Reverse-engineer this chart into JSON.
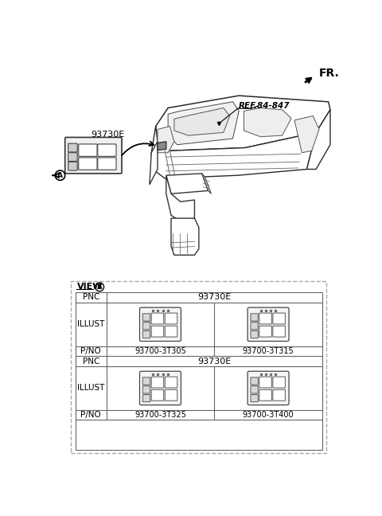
{
  "bg_color": "#ffffff",
  "fr_label": "FR.",
  "ref_label": "REF.84-847",
  "part_label": "93730E",
  "line_color": "#333333",
  "dash_color": "#999999",
  "pnc1": "93730E",
  "pnc2": "93730E",
  "pno_row1_left": "93700-3T305",
  "pno_row1_right": "93700-3T315",
  "pno_row2_left": "93700-3T325",
  "pno_row2_right": "93700-3T400"
}
